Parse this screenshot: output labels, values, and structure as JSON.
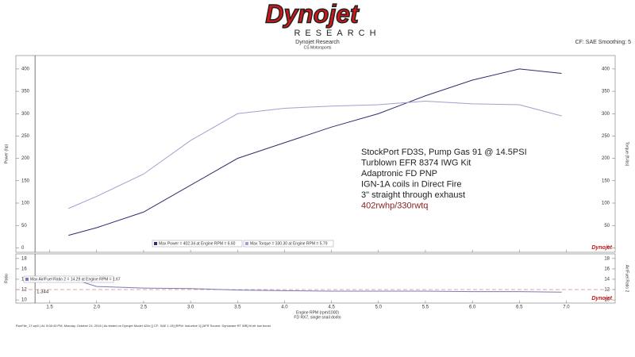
{
  "header": {
    "brand": "Dynojet",
    "brand_sub": "RESEARCH",
    "title": "Dynojet Research",
    "subtitle": "CS Motorsports",
    "settings": "CF: SAE Smoothing: 5"
  },
  "chart_data": [
    {
      "type": "line",
      "ylabel": "Power (hp)",
      "y2label": "Torque (ft-lbs)",
      "xlim": [
        1.14,
        7.52
      ],
      "ylim": [
        -10,
        430
      ],
      "yticks": [
        0,
        50,
        100,
        150,
        200,
        250,
        300,
        350,
        400
      ],
      "y2lim": [
        -10,
        430
      ],
      "y2ticks": [
        0,
        50,
        100,
        150,
        200,
        250,
        300,
        350,
        400
      ],
      "cursor": 1.344,
      "x": [
        1.7,
        2.0,
        2.5,
        3.0,
        3.5,
        4.0,
        4.5,
        5.0,
        5.5,
        6.0,
        6.5,
        6.95
      ],
      "series": [
        {
          "name": "Max Power = 402.34 at Engine RPM = 6.60",
          "color": "#2e2e6e",
          "values": [
            28,
            45,
            80,
            140,
            200,
            235,
            270,
            300,
            340,
            375,
            400,
            390
          ]
        },
        {
          "name": "Max Torque = 330.30 at Engine RPM = 5.79",
          "color": "#a0a0d0",
          "axis": "y2",
          "values": [
            88,
            115,
            165,
            240,
            300,
            312,
            317,
            320,
            328,
            322,
            320,
            295
          ]
        }
      ],
      "annotations": [
        "StockPort FD3S, Pump Gas 91 @ 14.5PSI",
        "Turblown EFR 8374 IWG Kit",
        "Adaptronic FD PNP",
        "IGN-1A coils in Direct Fire",
        "3\" straight through exhaust"
      ],
      "highlight": "402rwhp/330rwtq"
    },
    {
      "type": "line",
      "ylabel": "Ratio",
      "y2label": "Air/Fuel Ratio 2",
      "xlabel": "Engine RPM (rpm/1000)",
      "xlim": [
        1.14,
        7.52
      ],
      "ylim": [
        9.4,
        18.9
      ],
      "yticks": [
        10,
        12,
        14,
        16,
        18
      ],
      "y2lim": [
        9.4,
        18.9
      ],
      "y2ticks": [
        10,
        12,
        14,
        16,
        18
      ],
      "xticks": [
        1.5,
        {
          "value": 2,
          "label": "2.0"
        },
        2.5,
        {
          "value": 3,
          "label": "3.0"
        },
        3.5,
        {
          "value": 4,
          "label": "4.0"
        },
        4.5,
        {
          "value": 5,
          "label": "5.0"
        },
        5.5,
        {
          "value": 6,
          "label": "6.0"
        },
        6.5,
        {
          "value": 7,
          "label": "7.0"
        }
      ],
      "cursor": 1.344,
      "reference_line": 12,
      "x": [
        1.7,
        2.0,
        2.5,
        3.0,
        3.5,
        4.0,
        4.5,
        5.0,
        5.5,
        6.0,
        6.5,
        6.95
      ],
      "series": [
        {
          "name": "Max Air/Fuel Ratio 2 = 14.29 at Engine RPM = 1.67",
          "color": "#7a7ab8",
          "values": [
            14.29,
            12.6,
            12.3,
            12.2,
            11.9,
            11.8,
            11.7,
            11.7,
            11.7,
            11.6,
            11.6,
            11.5
          ]
        }
      ]
    }
  ],
  "footer": {
    "vehicle": "FD RX7, single snail dorito",
    "runinfo": "RunFile_17.wp0 | At: 9:08:43 PM, Monday, October 24, 2016 | As tested on Dynojet Model 424x [] CF: SAE 1.19] [RPM: Inductive 1] [AFR Source: Dynoware RT WB] fd efr low boost"
  }
}
